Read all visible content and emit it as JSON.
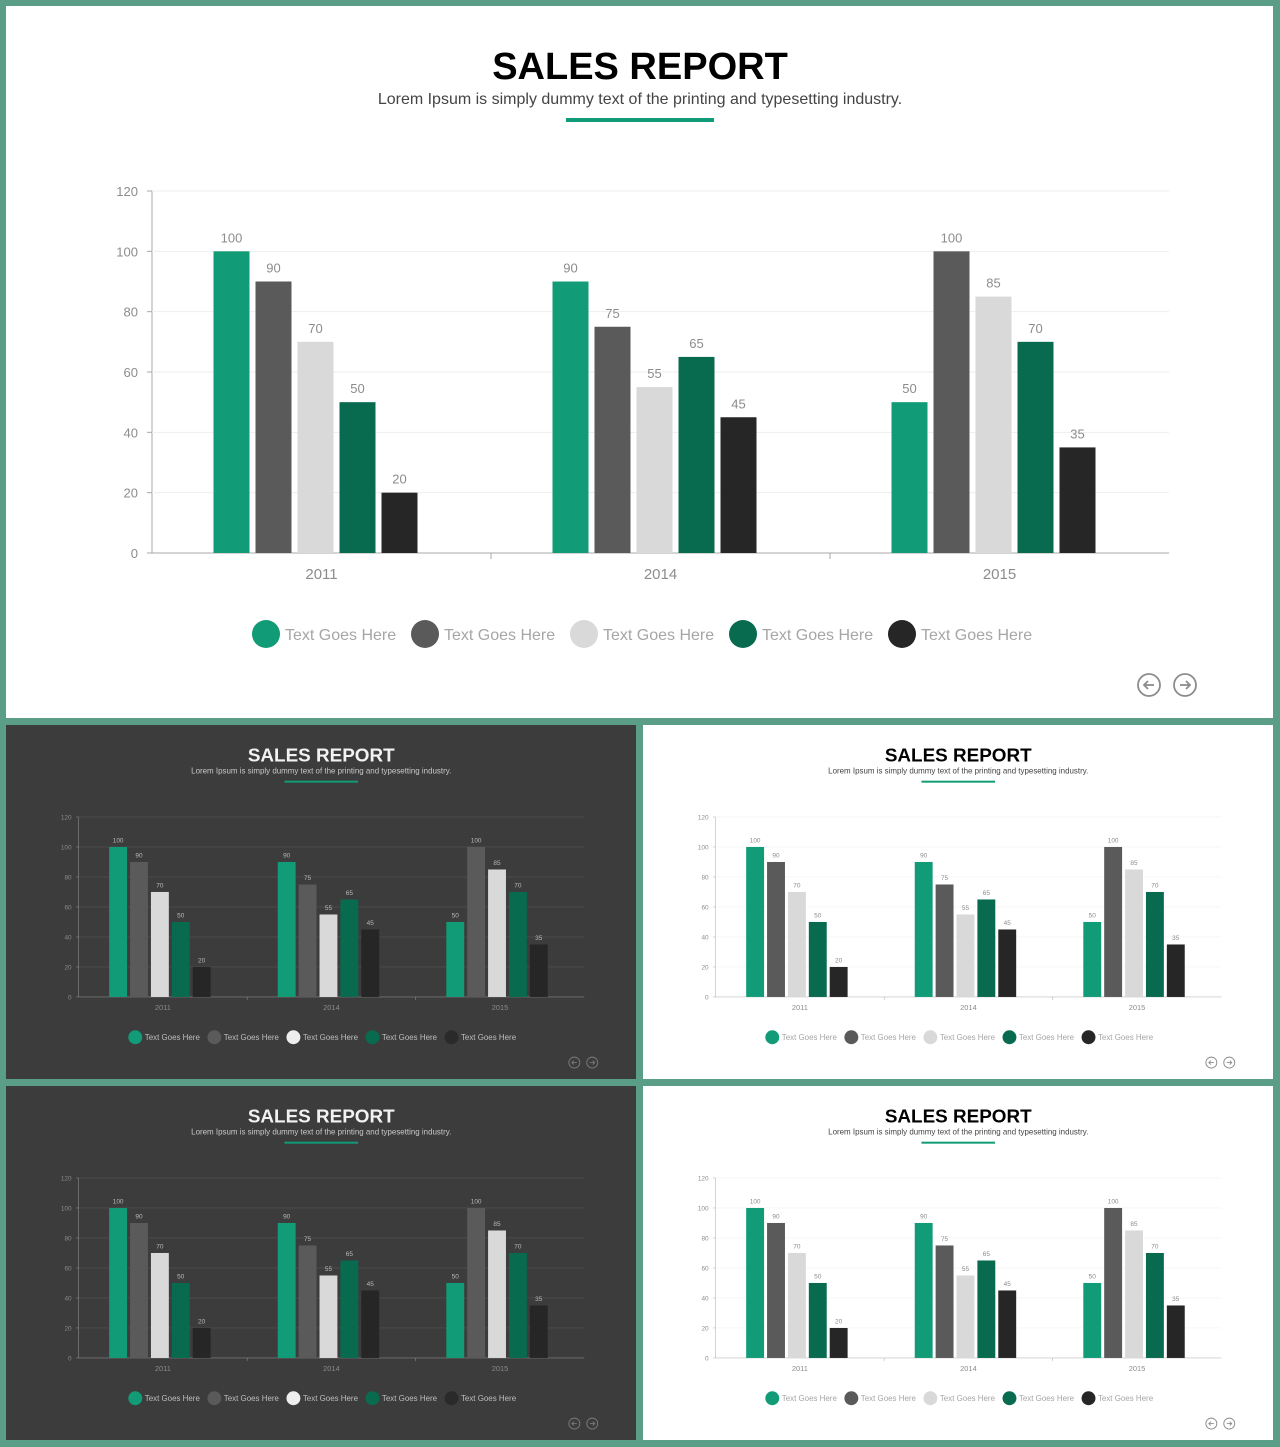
{
  "slides": [
    {
      "id": "slide-main",
      "theme": "light",
      "title": "SALES REPORT",
      "subtitle": "Lorem Ipsum is simply dummy text of the printing and typesetting industry."
    },
    {
      "id": "slide-tl",
      "theme": "dark",
      "title": "SALES REPORT",
      "subtitle": "Lorem Ipsum is simply dummy text of the printing and typesetting industry."
    },
    {
      "id": "slide-tr",
      "theme": "light",
      "title": "SALES REPORT",
      "subtitle": "Lorem Ipsum is simply dummy text of the printing and typesetting industry."
    },
    {
      "id": "slide-bl",
      "theme": "dark",
      "title": "SALES REPORT",
      "subtitle": "Lorem Ipsum is simply dummy text of the printing and typesetting industry."
    },
    {
      "id": "slide-br",
      "theme": "light",
      "title": "SALES REPORT",
      "subtitle": "Lorem Ipsum is simply dummy text of the printing and typesetting industry."
    }
  ],
  "nav_icons": [
    "arrow-left-circle-icon",
    "arrow-right-circle-icon"
  ],
  "colors": {
    "accent": "#119c77",
    "frame": "#5a9e88",
    "dark_bg": "#3c3c3c",
    "light_bg": "#ffffff"
  },
  "chart_data": {
    "type": "bar",
    "categories": [
      "2011",
      "2014",
      "2015"
    ],
    "ylim": [
      0,
      120
    ],
    "yticks": [
      0,
      20,
      40,
      60,
      80,
      100,
      120
    ],
    "legend_position": "bottom",
    "grid": true,
    "series": [
      {
        "name": "Text Goes Here",
        "color": "#119c77",
        "values": [
          100,
          90,
          50
        ]
      },
      {
        "name": "Text Goes Here",
        "color": "#5a5a5a",
        "values": [
          90,
          75,
          100
        ]
      },
      {
        "name": "Text Goes Here",
        "color": "#d9d9d9",
        "values": [
          70,
          55,
          85
        ]
      },
      {
        "name": "Text Goes Here",
        "color": "#086b4f",
        "values": [
          50,
          65,
          70
        ]
      },
      {
        "name": "Text Goes Here",
        "color": "#262626",
        "values": [
          20,
          45,
          35
        ]
      }
    ]
  }
}
